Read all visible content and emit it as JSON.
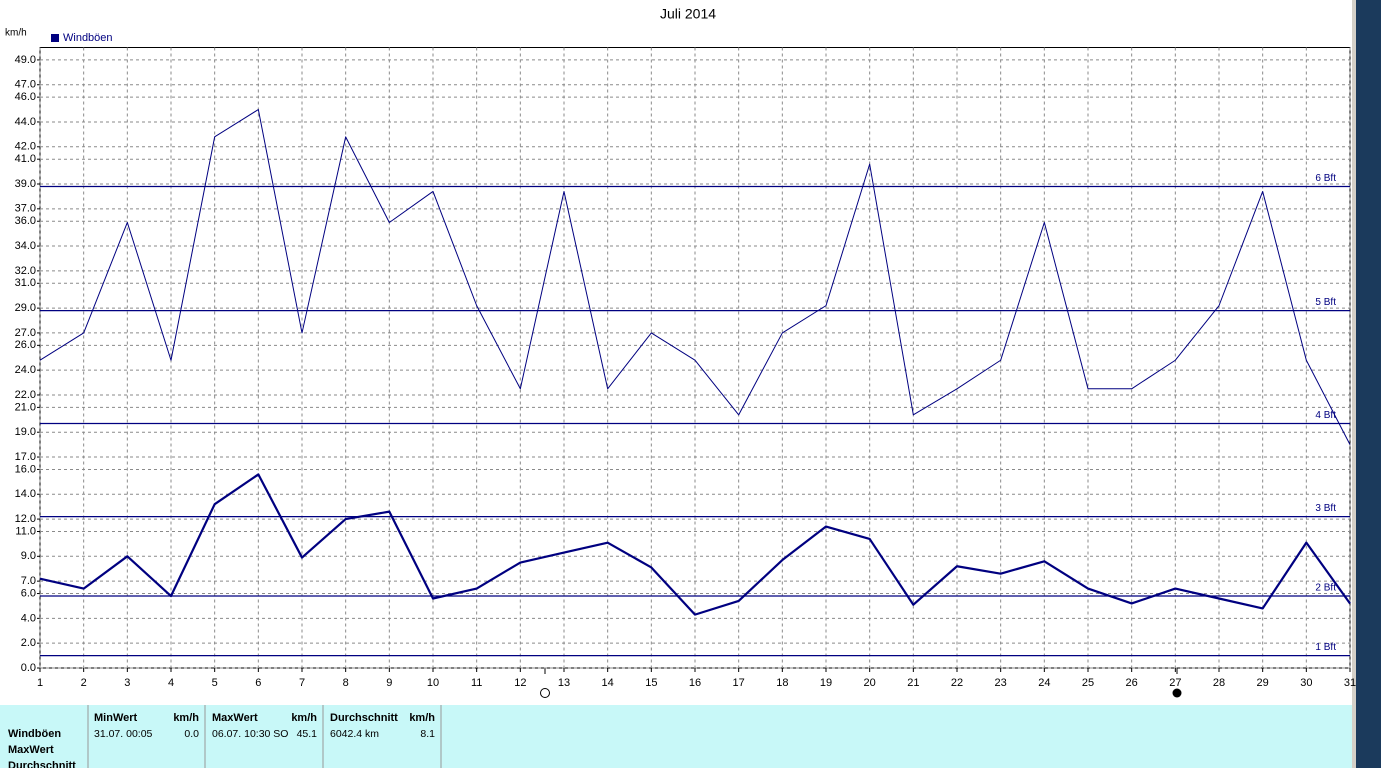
{
  "chart_data": {
    "type": "line",
    "title": "Juli 2014",
    "y_label": "km/h",
    "x": [
      1,
      2,
      3,
      4,
      5,
      6,
      7,
      8,
      9,
      10,
      11,
      12,
      13,
      14,
      15,
      16,
      17,
      18,
      19,
      20,
      21,
      22,
      23,
      24,
      25,
      26,
      27,
      28,
      29,
      30,
      31
    ],
    "xlim": [
      1,
      31
    ],
    "xticks": [
      1,
      2,
      3,
      4,
      5,
      6,
      7,
      8,
      9,
      10,
      11,
      12,
      13,
      14,
      15,
      16,
      17,
      18,
      19,
      20,
      21,
      22,
      23,
      24,
      25,
      26,
      27,
      28,
      29,
      30,
      31
    ],
    "ylim": [
      0,
      50
    ],
    "yticks": [
      {
        "value": 0,
        "label": "0.0"
      },
      {
        "value": 2,
        "label": "2.0"
      },
      {
        "value": 4,
        "label": "4.0"
      },
      {
        "value": 6,
        "label": "6.0"
      },
      {
        "value": 7,
        "label": "7.0"
      },
      {
        "value": 9,
        "label": "9.0"
      },
      {
        "value": 11,
        "label": "11.0"
      },
      {
        "value": 12,
        "label": "12.0"
      },
      {
        "value": 14,
        "label": "14.0"
      },
      {
        "value": 16,
        "label": "16.0"
      },
      {
        "value": 17,
        "label": "17.0"
      },
      {
        "value": 19,
        "label": "19.0"
      },
      {
        "value": 21,
        "label": "21.0"
      },
      {
        "value": 22,
        "label": "22.0"
      },
      {
        "value": 24,
        "label": "24.0"
      },
      {
        "value": 26,
        "label": "26.0"
      },
      {
        "value": 27,
        "label": "27.0"
      },
      {
        "value": 29,
        "label": "29.0"
      },
      {
        "value": 31,
        "label": "31.0"
      },
      {
        "value": 32,
        "label": "32.0"
      },
      {
        "value": 34,
        "label": "34.0"
      },
      {
        "value": 36,
        "label": "36.0"
      },
      {
        "value": 37,
        "label": "37.0"
      },
      {
        "value": 39,
        "label": "39.0"
      },
      {
        "value": 41,
        "label": "41.0"
      },
      {
        "value": 42,
        "label": "42.0"
      },
      {
        "value": 44,
        "label": "44.0"
      },
      {
        "value": 46,
        "label": "46.0"
      },
      {
        "value": 47,
        "label": "47.0"
      },
      {
        "value": 49,
        "label": "49.0"
      }
    ],
    "grid": true,
    "legend": "top-left",
    "series": [
      {
        "name": "Windböen",
        "color": "#000080",
        "values": [
          24.8,
          27.0,
          35.9,
          24.8,
          42.8,
          45.0,
          27.0,
          42.8,
          35.9,
          38.4,
          29.2,
          22.5,
          38.4,
          22.5,
          27.0,
          24.8,
          20.4,
          27.0,
          29.2,
          40.6,
          20.4,
          22.5,
          24.8,
          35.9,
          22.5,
          22.5,
          24.8,
          29.2,
          38.4,
          24.8,
          18.0
        ]
      },
      {
        "color": "#000080",
        "values": [
          7.2,
          6.4,
          9.0,
          5.8,
          13.2,
          15.6,
          8.9,
          12.0,
          12.6,
          5.6,
          6.4,
          8.5,
          9.3,
          10.1,
          8.1,
          4.3,
          5.4,
          8.7,
          11.4,
          10.4,
          5.1,
          8.2,
          7.6,
          8.6,
          6.4,
          5.2,
          6.4,
          5.6,
          4.8,
          10.1,
          5.2
        ]
      }
    ],
    "reference_lines": [
      {
        "label": "1 Bft",
        "value": 1.0
      },
      {
        "label": "2 Bft",
        "value": 5.8
      },
      {
        "label": "3 Bft",
        "value": 12.2
      },
      {
        "label": "4 Bft",
        "value": 19.7
      },
      {
        "label": "5 Bft",
        "value": 28.8
      },
      {
        "label": "6 Bft",
        "value": 38.8
      }
    ]
  },
  "stats": {
    "row_labels": [
      "Windböen",
      "MaxWert",
      "Durchschnitt"
    ],
    "columns": [
      {
        "header": "MinWert",
        "unit": "km/h",
        "info": "31.07.  00:05",
        "value": "0.0"
      },
      {
        "header": "MaxWert",
        "unit": "km/h",
        "info": "06.07.  10:30 SO",
        "value": "45.1"
      },
      {
        "header": "Durchschnitt",
        "unit": "km/h",
        "info": "6042.4 km",
        "value": "8.1"
      }
    ]
  }
}
